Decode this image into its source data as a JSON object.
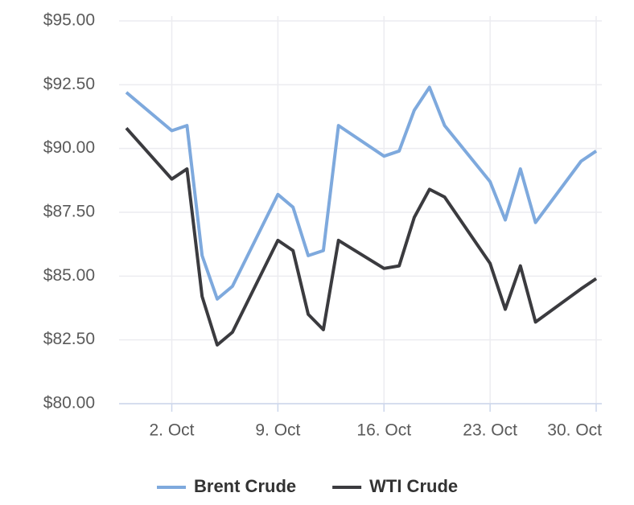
{
  "chart_data": {
    "type": "line",
    "x": [
      "29. Sep",
      "2. Oct",
      "3. Oct",
      "4. Oct",
      "5. Oct",
      "6. Oct",
      "9. Oct",
      "10. Oct",
      "11. Oct",
      "12. Oct",
      "13. Oct",
      "16. Oct",
      "17. Oct",
      "18. Oct",
      "19. Oct",
      "20. Oct",
      "23. Oct",
      "24. Oct",
      "25. Oct",
      "26. Oct",
      "29. Oct",
      "30. Oct"
    ],
    "series": [
      {
        "name": "Brent Crude",
        "color": "#7ea9dd",
        "values": [
          92.2,
          90.7,
          90.9,
          85.8,
          84.1,
          84.6,
          88.2,
          87.7,
          85.8,
          86.0,
          90.9,
          89.7,
          89.9,
          91.5,
          92.4,
          90.9,
          88.7,
          87.2,
          89.2,
          87.1,
          89.5,
          89.9
        ]
      },
      {
        "name": "WTI Crude",
        "color": "#3b3b3f",
        "values": [
          90.8,
          88.8,
          89.2,
          84.2,
          82.3,
          82.8,
          86.4,
          86.0,
          83.5,
          82.9,
          86.4,
          85.3,
          85.4,
          87.3,
          88.4,
          88.1,
          85.5,
          83.7,
          85.4,
          83.2,
          84.5,
          84.9
        ]
      }
    ],
    "xlim": [
      "29. Sep",
      "30. Oct"
    ],
    "xticks": [
      "2. Oct",
      "9. Oct",
      "16. Oct",
      "23. Oct",
      "30. Oct"
    ],
    "ylim": [
      80,
      95
    ],
    "yticks": [
      {
        "value": 80,
        "label": "$80.00"
      },
      {
        "value": 82.5,
        "label": "$82.50"
      },
      {
        "value": 85,
        "label": "$85.00"
      },
      {
        "value": 87.5,
        "label": "$87.50"
      },
      {
        "value": 90,
        "label": "$90.00"
      },
      {
        "value": 92.5,
        "label": "$92.50"
      },
      {
        "value": 95,
        "label": "$95.00"
      }
    ],
    "grid": true,
    "legend": "bottom"
  }
}
